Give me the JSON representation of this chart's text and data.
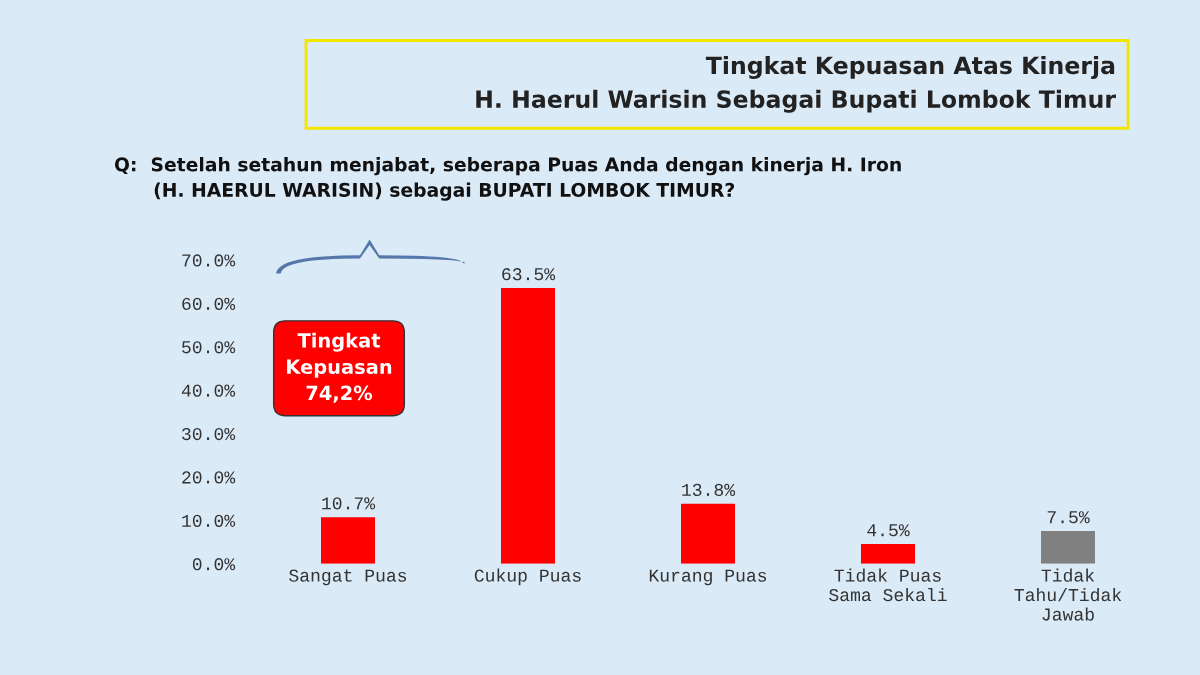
{
  "chart_data": {
    "type": "bar",
    "title": "Tingkat Kepuasan Atas Kinerja\nH. Haerul Warisin Sebagai Bupati Lombok Timur",
    "subtitle": "Q:  Setelah setahun menjabat, seberapa Puas Anda dengan kinerja H. Iron\n      (H. HAERUL WARISIN) sebagai BUPATI LOMBOK TIMUR?",
    "categories": [
      "Sangat Puas",
      "Cukup Puas",
      "Kurang Puas",
      "Tidak Puas\nSama Sekali",
      "Tidak\nTahu/Tidak\nJawab"
    ],
    "values": [
      10.7,
      63.5,
      13.8,
      4.5,
      7.5
    ],
    "colors": [
      "#ff0000",
      "#ff0000",
      "#ff0000",
      "#ff0000",
      "#808080"
    ],
    "value_labels": [
      "10.7%",
      "63.5%",
      "13.8%",
      "4.5%",
      "7.5%"
    ],
    "ylim": [
      0,
      70
    ],
    "yticks": [
      {
        "value": 0,
        "label": "0.0%"
      },
      {
        "value": 10,
        "label": "10.0%"
      },
      {
        "value": 20,
        "label": "20.0%"
      },
      {
        "value": 30,
        "label": "30.0%"
      },
      {
        "value": 40,
        "label": "40.0%"
      },
      {
        "value": 50,
        "label": "50.0%"
      },
      {
        "value": 60,
        "label": "60.0%"
      },
      {
        "value": 70,
        "label": "70.0%"
      }
    ],
    "annotations": [
      "Tingkat\nKepuasan\n74,2%"
    ],
    "grid": false,
    "legend": false
  }
}
